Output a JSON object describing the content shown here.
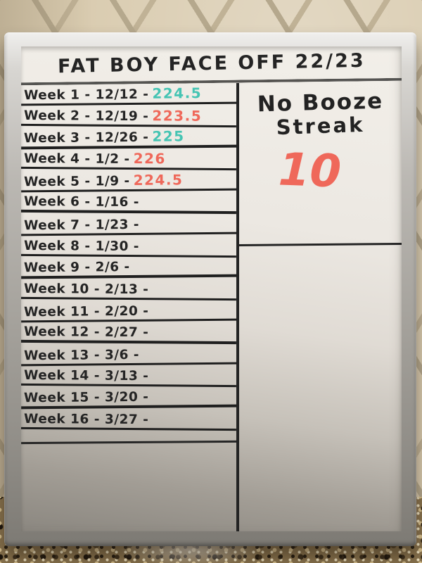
{
  "board": {
    "title": "FAT BOY FACE OFF 22/23"
  },
  "weeks": [
    {
      "label": "Week 1",
      "date": "12/12",
      "value": "224.5",
      "color": "teal"
    },
    {
      "label": "Week 2",
      "date": "12/19",
      "value": "223.5",
      "color": "red"
    },
    {
      "label": "Week 3",
      "date": "12/26",
      "value": "225",
      "color": "teal"
    },
    {
      "label": "Week 4",
      "date": "1/2",
      "value": "226",
      "color": "red"
    },
    {
      "label": "Week 5",
      "date": "1/9",
      "value": "224.5",
      "color": "red"
    },
    {
      "label": "Week 6",
      "date": "1/16",
      "value": "",
      "color": ""
    },
    {
      "label": "Week 7",
      "date": "1/23",
      "value": "",
      "color": ""
    },
    {
      "label": "Week 8",
      "date": "1/30",
      "value": "",
      "color": ""
    },
    {
      "label": "Week 9",
      "date": "2/6",
      "value": "",
      "color": ""
    },
    {
      "label": "Week 10",
      "date": "2/13",
      "value": "",
      "color": ""
    },
    {
      "label": "Week 11",
      "date": "2/20",
      "value": "",
      "color": ""
    },
    {
      "label": "Week 12",
      "date": "2/27",
      "value": "",
      "color": ""
    },
    {
      "label": "Week 13",
      "date": "3/6",
      "value": "",
      "color": ""
    },
    {
      "label": "Week 14",
      "date": "3/13",
      "value": "",
      "color": ""
    },
    {
      "label": "Week 15",
      "date": "3/20",
      "value": "",
      "color": ""
    },
    {
      "label": "Week 16",
      "date": "3/27",
      "value": "",
      "color": ""
    }
  ],
  "streak": {
    "line1": "No Booze",
    "line2": "Streak",
    "count": "10"
  },
  "colors": {
    "teal": "#45c4b3",
    "red": "#ef685a",
    "marker": "#262626"
  }
}
